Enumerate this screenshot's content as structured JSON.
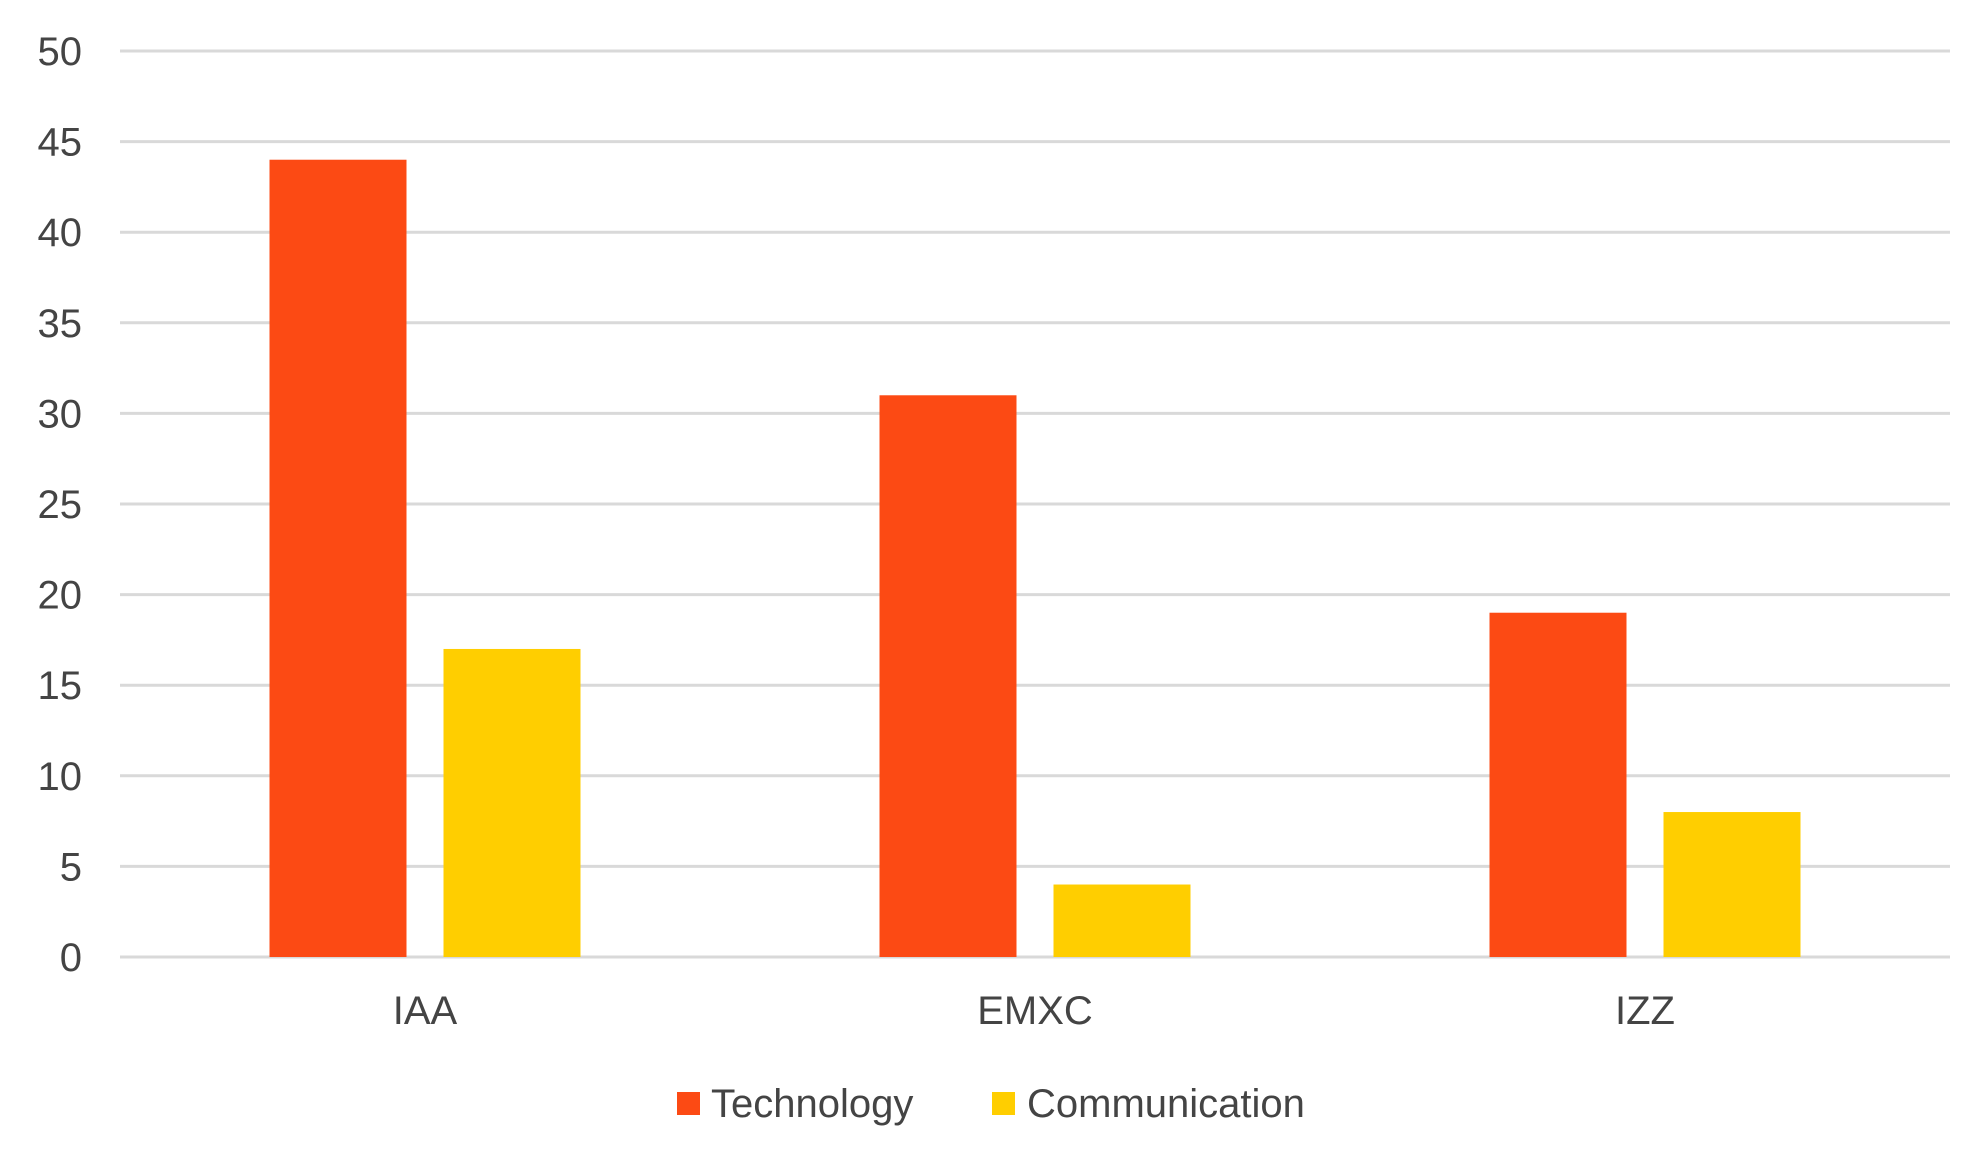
{
  "chart_data": {
    "type": "bar",
    "categories": [
      "IAA",
      "EMXC",
      "IZZ"
    ],
    "series": [
      {
        "name": "Technology",
        "color": "#FC4A14",
        "values": [
          44,
          31,
          19
        ]
      },
      {
        "name": "Communication",
        "color": "#FFCE00",
        "values": [
          17,
          4,
          8
        ]
      }
    ],
    "ylim": [
      0,
      50
    ],
    "yticks": [
      0,
      5,
      10,
      15,
      20,
      25,
      30,
      35,
      40,
      45,
      50
    ],
    "grid": true,
    "legend_position": "bottom-center",
    "grid_color": "#D9D9D9"
  }
}
